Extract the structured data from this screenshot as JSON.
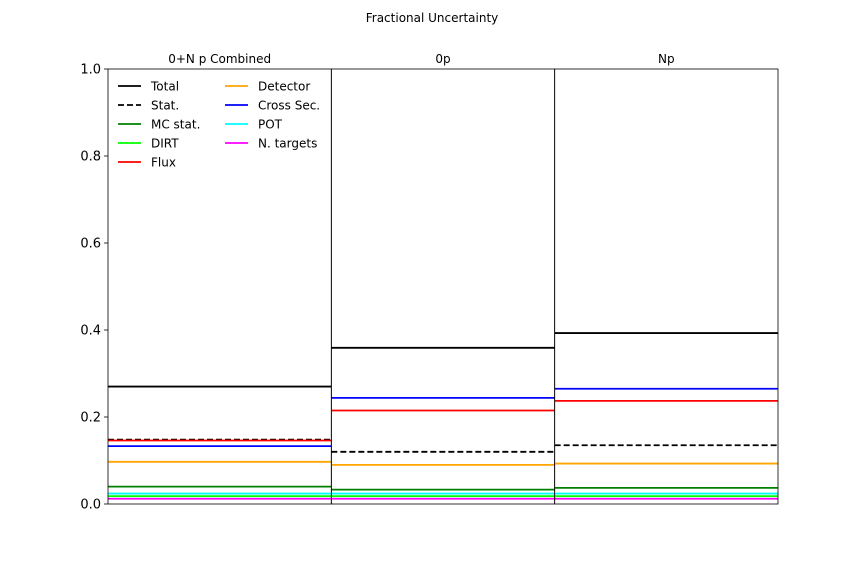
{
  "chart_data": {
    "type": "line",
    "title": "Fractional Uncertainty",
    "ylim": [
      0.0,
      1.0
    ],
    "yticks": [
      "0.0",
      "0.2",
      "0.4",
      "0.6",
      "0.8",
      "1.0"
    ],
    "ytick_values": [
      0.0,
      0.2,
      0.4,
      0.6,
      0.8,
      1.0
    ],
    "grid": false,
    "legend_placement": "top-left",
    "panels": [
      "0+N p Combined",
      "0p",
      "Np"
    ],
    "series": [
      {
        "name": "Total",
        "color": "#000000",
        "dash": "solid",
        "values": [
          0.27,
          0.359,
          0.393
        ]
      },
      {
        "name": "Stat.",
        "color": "#000000",
        "dash": "dashed",
        "values": [
          0.148,
          0.12,
          0.135
        ]
      },
      {
        "name": "MC stat.",
        "color": "#008000",
        "dash": "solid",
        "values": [
          0.04,
          0.033,
          0.037
        ]
      },
      {
        "name": "DIRT",
        "color": "#00ff00",
        "dash": "solid",
        "values": [
          0.018,
          0.018,
          0.018
        ]
      },
      {
        "name": "Flux",
        "color": "#ff0000",
        "dash": "solid",
        "values": [
          0.146,
          0.215,
          0.237
        ]
      },
      {
        "name": "Detector",
        "color": "#ffa500",
        "dash": "solid",
        "values": [
          0.097,
          0.09,
          0.093
        ]
      },
      {
        "name": "Cross Sec.",
        "color": "#0000ff",
        "dash": "solid",
        "values": [
          0.133,
          0.244,
          0.265
        ]
      },
      {
        "name": "POT",
        "color": "#00ffff",
        "dash": "solid",
        "values": [
          0.024,
          0.024,
          0.024
        ]
      },
      {
        "name": "N. targets",
        "color": "#ff00ff",
        "dash": "solid",
        "values": [
          0.012,
          0.012,
          0.012
        ]
      }
    ]
  }
}
